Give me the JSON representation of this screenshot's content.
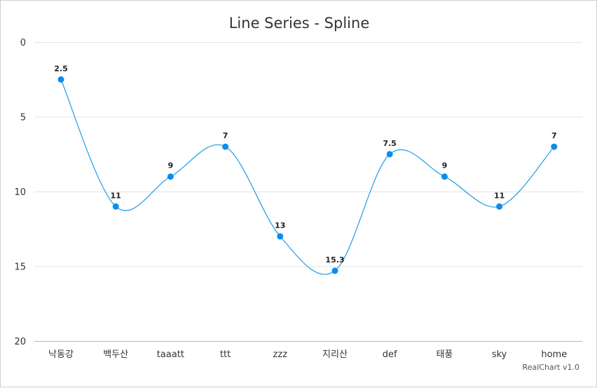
{
  "chart_data": {
    "type": "line",
    "subtype": "spline",
    "title": "Line Series - Spline",
    "credits": "RealChart v1.0",
    "categories": [
      "낙동강",
      "백두산",
      "taaatt",
      "ttt",
      "zzz",
      "지리산",
      "def",
      "태풍",
      "sky",
      "home"
    ],
    "values": [
      2.5,
      11,
      9,
      7,
      13,
      15.3,
      7.5,
      9,
      11,
      7
    ],
    "yticks": [
      0,
      5,
      10,
      15,
      20
    ],
    "ylim": [
      0,
      20
    ],
    "y_reversed": true,
    "grid": true,
    "legend": "none",
    "line_color": "#1e9ce8",
    "point_color": "#0a8cf0"
  }
}
